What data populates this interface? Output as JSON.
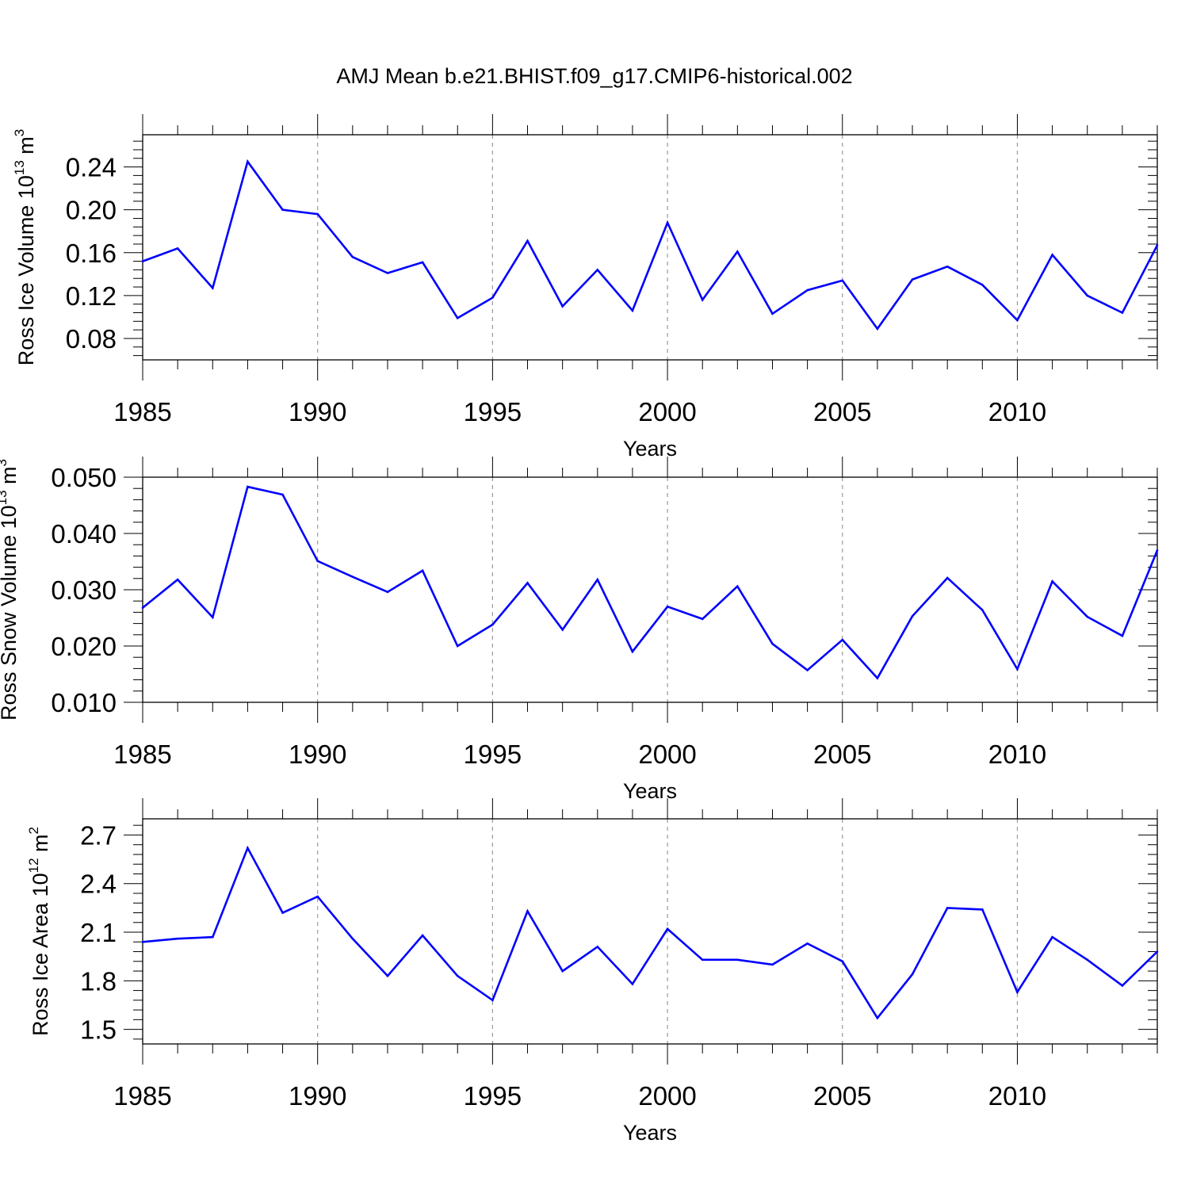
{
  "figure": {
    "title": "AMJ Mean b.e21.BHIST.f09_g17.CMIP6-historical.002"
  },
  "chart_data": [
    {
      "type": "line",
      "title": "",
      "xlabel": "Years",
      "ylabel": "Ross Ice Volume 10",
      "ylabel_exp": "13",
      "ylabel_unit": " m",
      "ylabel_unit_exp": "3",
      "xlim": [
        1985,
        2014
      ],
      "ylim": [
        0.06,
        0.27
      ],
      "xticks": [
        1985,
        1990,
        1995,
        2000,
        2005,
        2010
      ],
      "xtick_labels": [
        "1985",
        "1990",
        "1995",
        "2000",
        "2005",
        "2010"
      ],
      "yticks": [
        0.08,
        0.12,
        0.16,
        0.2,
        0.24
      ],
      "ytick_labels": [
        "0.08",
        "0.12",
        "0.16",
        "0.20",
        "0.24"
      ],
      "grid": "vertical dashed at labeled years",
      "color": "#0000ff",
      "x": [
        1985,
        1986,
        1987,
        1988,
        1989,
        1990,
        1991,
        1992,
        1993,
        1994,
        1995,
        1996,
        1997,
        1998,
        1999,
        2000,
        2001,
        2002,
        2003,
        2004,
        2005,
        2006,
        2007,
        2008,
        2009,
        2010,
        2011,
        2012,
        2013,
        2014
      ],
      "values": [
        0.152,
        0.164,
        0.127,
        0.245,
        0.2,
        0.196,
        0.156,
        0.141,
        0.151,
        0.099,
        0.118,
        0.171,
        0.11,
        0.144,
        0.106,
        0.188,
        0.116,
        0.161,
        0.103,
        0.125,
        0.134,
        0.089,
        0.135,
        0.147,
        0.13,
        0.097,
        0.158,
        0.12,
        0.104,
        0.167
      ]
    },
    {
      "type": "line",
      "title": "",
      "xlabel": "Years",
      "ylabel": "Ross Snow Volume 10",
      "ylabel_exp": "13",
      "ylabel_unit": " m",
      "ylabel_unit_exp": "3",
      "xlim": [
        1985,
        2014
      ],
      "ylim": [
        0.01,
        0.05
      ],
      "xticks": [
        1985,
        1990,
        1995,
        2000,
        2005,
        2010
      ],
      "xtick_labels": [
        "1985",
        "1990",
        "1995",
        "2000",
        "2005",
        "2010"
      ],
      "yticks": [
        0.01,
        0.02,
        0.03,
        0.04,
        0.05
      ],
      "ytick_labels": [
        "0.010",
        "0.020",
        "0.030",
        "0.040",
        "0.050"
      ],
      "grid": "vertical dashed at labeled years",
      "color": "#0000ff",
      "x": [
        1985,
        1986,
        1987,
        1988,
        1989,
        1990,
        1991,
        1992,
        1993,
        1994,
        1995,
        1996,
        1997,
        1998,
        1999,
        2000,
        2001,
        2002,
        2003,
        2004,
        2005,
        2006,
        2007,
        2008,
        2009,
        2010,
        2011,
        2012,
        2013,
        2014
      ],
      "values": [
        0.0268,
        0.0318,
        0.0251,
        0.0483,
        0.0469,
        0.0351,
        0.0323,
        0.0296,
        0.0334,
        0.02,
        0.0238,
        0.0312,
        0.0229,
        0.0318,
        0.019,
        0.027,
        0.0248,
        0.0306,
        0.0204,
        0.0157,
        0.0211,
        0.0143,
        0.0253,
        0.0321,
        0.0264,
        0.0159,
        0.0315,
        0.0252,
        0.0218,
        0.037
      ]
    },
    {
      "type": "line",
      "title": "",
      "xlabel": "Years",
      "ylabel": "Ross Ice Area 10",
      "ylabel_exp": "12",
      "ylabel_unit": " m",
      "ylabel_unit_exp": "2",
      "xlim": [
        1985,
        2014
      ],
      "ylim": [
        1.41,
        2.8
      ],
      "xticks": [
        1985,
        1990,
        1995,
        2000,
        2005,
        2010
      ],
      "xtick_labels": [
        "1985",
        "1990",
        "1995",
        "2000",
        "2005",
        "2010"
      ],
      "yticks": [
        1.5,
        1.8,
        2.1,
        2.4,
        2.7
      ],
      "ytick_labels": [
        "1.5",
        "1.8",
        "2.1",
        "2.4",
        "2.7"
      ],
      "grid": "vertical dashed at labeled years",
      "color": "#0000ff",
      "x": [
        1985,
        1986,
        1987,
        1988,
        1989,
        1990,
        1991,
        1992,
        1993,
        1994,
        1995,
        1996,
        1997,
        1998,
        1999,
        2000,
        2001,
        2002,
        2003,
        2004,
        2005,
        2006,
        2007,
        2008,
        2009,
        2010,
        2011,
        2012,
        2013,
        2014
      ],
      "values": [
        2.04,
        2.06,
        2.07,
        2.62,
        2.22,
        2.32,
        2.06,
        1.83,
        2.08,
        1.83,
        1.68,
        2.23,
        1.86,
        2.01,
        1.78,
        2.12,
        1.93,
        1.93,
        1.9,
        2.03,
        1.92,
        1.57,
        1.84,
        2.25,
        2.24,
        1.73,
        2.07,
        1.93,
        1.77,
        1.98
      ]
    }
  ]
}
